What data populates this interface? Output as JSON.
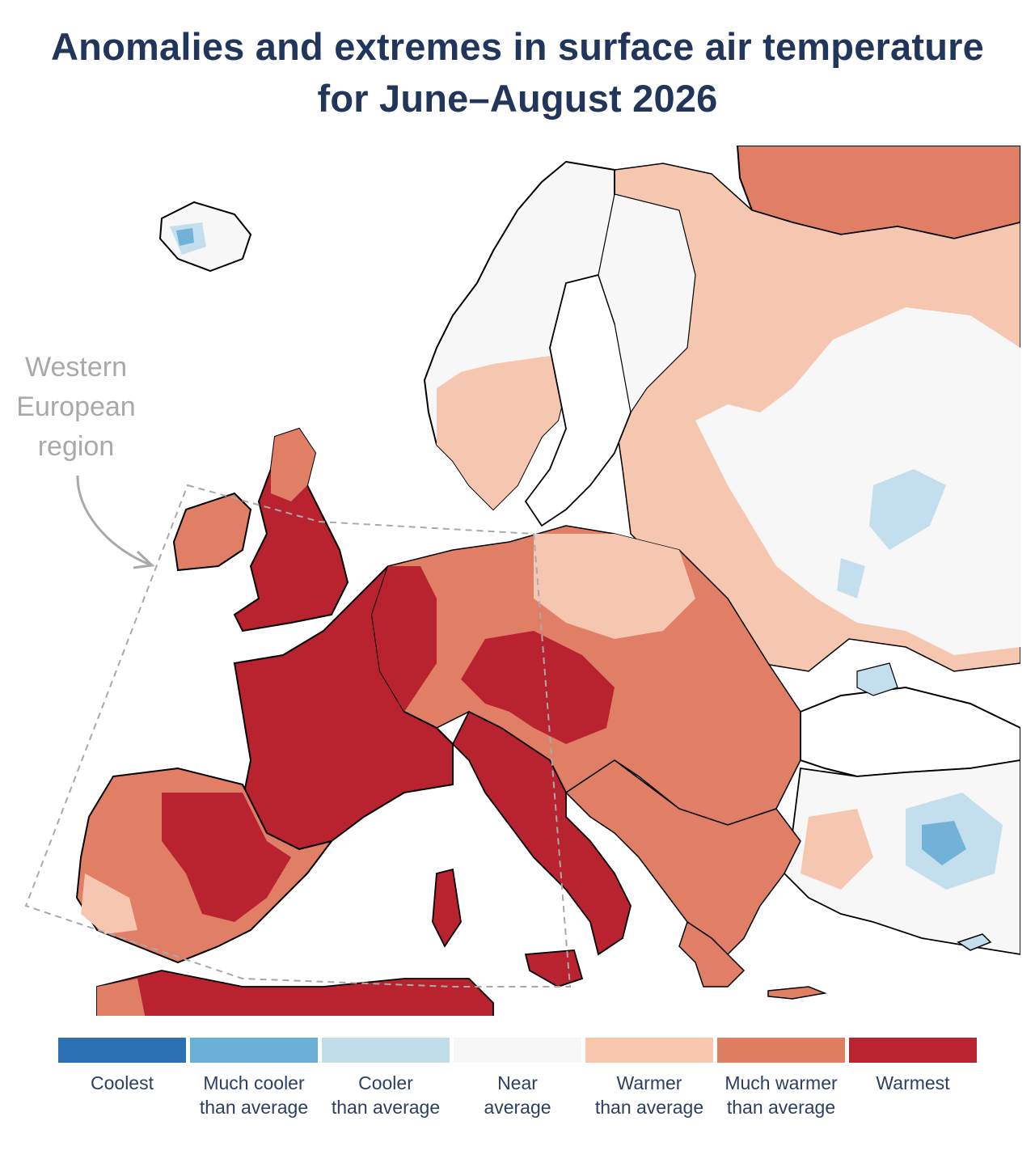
{
  "title": {
    "line1": "Anomalies and extremes in surface air temperature",
    "line2": "for June–August 2026"
  },
  "region_label": {
    "line1": "Western",
    "line2": "European",
    "line3": "region"
  },
  "map": {
    "land_colors": {
      "warmest": "#b8232f",
      "much_warmer": "#e07f65",
      "warmer": "#f6c7b0",
      "near": "#f7f7f7",
      "cooler": "#c3dfee",
      "much_cooler": "#72b2d8",
      "coolest": "#2f71b5"
    },
    "region_box_style": "dashed grey outline"
  },
  "legend": {
    "items": [
      {
        "key": "coolest",
        "line1": "Coolest",
        "line2": "",
        "color": "#2c70b4"
      },
      {
        "key": "much_cooler",
        "line1": "Much cooler",
        "line2": "than average",
        "color": "#6aafd6"
      },
      {
        "key": "cooler",
        "line1": "Cooler",
        "line2": "than average",
        "color": "#c2ddea"
      },
      {
        "key": "near",
        "line1": "Near",
        "line2": "average",
        "color": "#f7f7f7"
      },
      {
        "key": "warmer",
        "line1": "Warmer",
        "line2": "than average",
        "color": "#f7c6ad"
      },
      {
        "key": "much_warmer",
        "line1": "Much warmer",
        "line2": "than average",
        "color": "#e07e62"
      },
      {
        "key": "warmest",
        "line1": "Warmest",
        "line2": "",
        "color": "#b8242f"
      }
    ]
  }
}
